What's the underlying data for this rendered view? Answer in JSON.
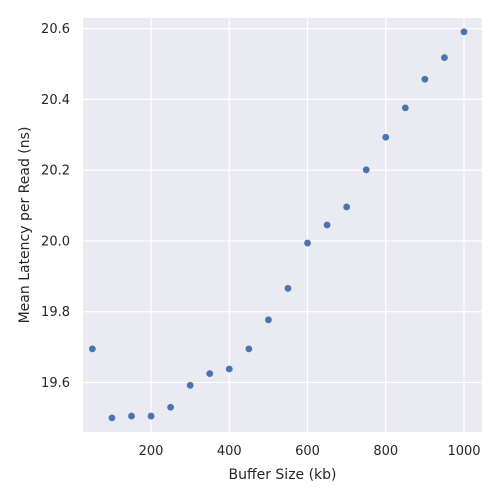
{
  "chart_data": {
    "type": "scatter",
    "title": "",
    "xlabel": "Buffer Size (kb)",
    "ylabel": "Mean Latency per Read (ns)",
    "xlim": [
      26,
      1046
    ],
    "ylim": [
      19.46,
      20.63
    ],
    "xticks": [
      200,
      400,
      600,
      800,
      1000
    ],
    "yticks": [
      19.6,
      19.8,
      20.0,
      20.2,
      20.4,
      20.6
    ],
    "xtick_labels": [
      "200",
      "400",
      "600",
      "800",
      "1000"
    ],
    "ytick_labels": [
      "19.6",
      "19.8",
      "20.0",
      "20.2",
      "20.4",
      "20.6"
    ],
    "grid": true,
    "legend": "none",
    "colors": {
      "plot_background": "#EAEAF2",
      "grid": "#FFFFFF",
      "marker": "#4C72B0",
      "text": "#262626"
    },
    "series": [
      {
        "x": [
          50,
          100,
          150,
          200,
          250,
          300,
          350,
          400,
          450,
          500,
          550,
          600,
          650,
          700,
          750,
          800,
          850,
          900,
          950,
          1000
        ],
        "y": [
          19.695,
          19.5,
          19.505,
          19.505,
          19.53,
          19.592,
          19.625,
          19.638,
          19.695,
          19.777,
          19.866,
          19.994,
          20.045,
          20.096,
          20.201,
          20.293,
          20.376,
          20.457,
          20.518,
          20.591
        ]
      }
    ]
  }
}
